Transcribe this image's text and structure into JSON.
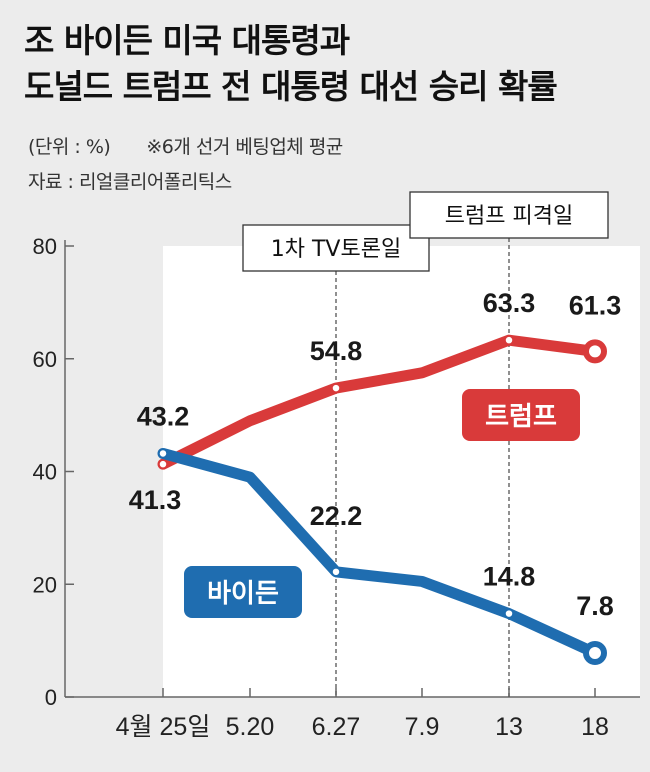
{
  "header": {
    "title_line1": "조 바이든 미국 대통령과",
    "title_line2": "도널드 트럼프 전 대통령 대선 승리 확률",
    "unit_note": "(단위 : %)",
    "method_note": "※6개 선거 베팅업체 평균",
    "source": "자료 : 리얼클리어폴리틱스"
  },
  "colors": {
    "trump": "#d93a3a",
    "biden": "#1f6db0",
    "background": "#ececec",
    "plot_area": "#ffffff"
  },
  "chart_data": {
    "type": "line",
    "title": "조 바이든 미국 대통령과 도널드 트럼프 전 대통령 대선 승리 확률",
    "ylim": [
      0,
      80
    ],
    "yticks": [
      0,
      20,
      40,
      60,
      80
    ],
    "categories": [
      "4월 25일",
      "5.20",
      "6.27",
      "7.9",
      "13",
      "18"
    ],
    "series": [
      {
        "name": "트럼프",
        "values": [
          41.3,
          49.0,
          54.8,
          57.5,
          63.3,
          61.3
        ]
      },
      {
        "name": "바이든",
        "values": [
          43.2,
          39.0,
          22.2,
          20.5,
          14.8,
          7.8
        ]
      }
    ],
    "data_labels": [
      {
        "series": "트럼프",
        "category": "4월 25일",
        "text": "41.3"
      },
      {
        "series": "트럼프",
        "category": "6.27",
        "text": "54.8"
      },
      {
        "series": "트럼프",
        "category": "13",
        "text": "63.3"
      },
      {
        "series": "트럼프",
        "category": "18",
        "text": "61.3"
      },
      {
        "series": "바이든",
        "category": "4월 25일",
        "text": "43.2"
      },
      {
        "series": "바이든",
        "category": "6.27",
        "text": "22.2"
      },
      {
        "series": "바이든",
        "category": "13",
        "text": "14.8"
      },
      {
        "series": "바이든",
        "category": "18",
        "text": "7.8"
      }
    ],
    "events": [
      {
        "category": "6.27",
        "label": "1차 TV토론일"
      },
      {
        "category": "13",
        "label": "트럼프 피격일"
      }
    ]
  }
}
